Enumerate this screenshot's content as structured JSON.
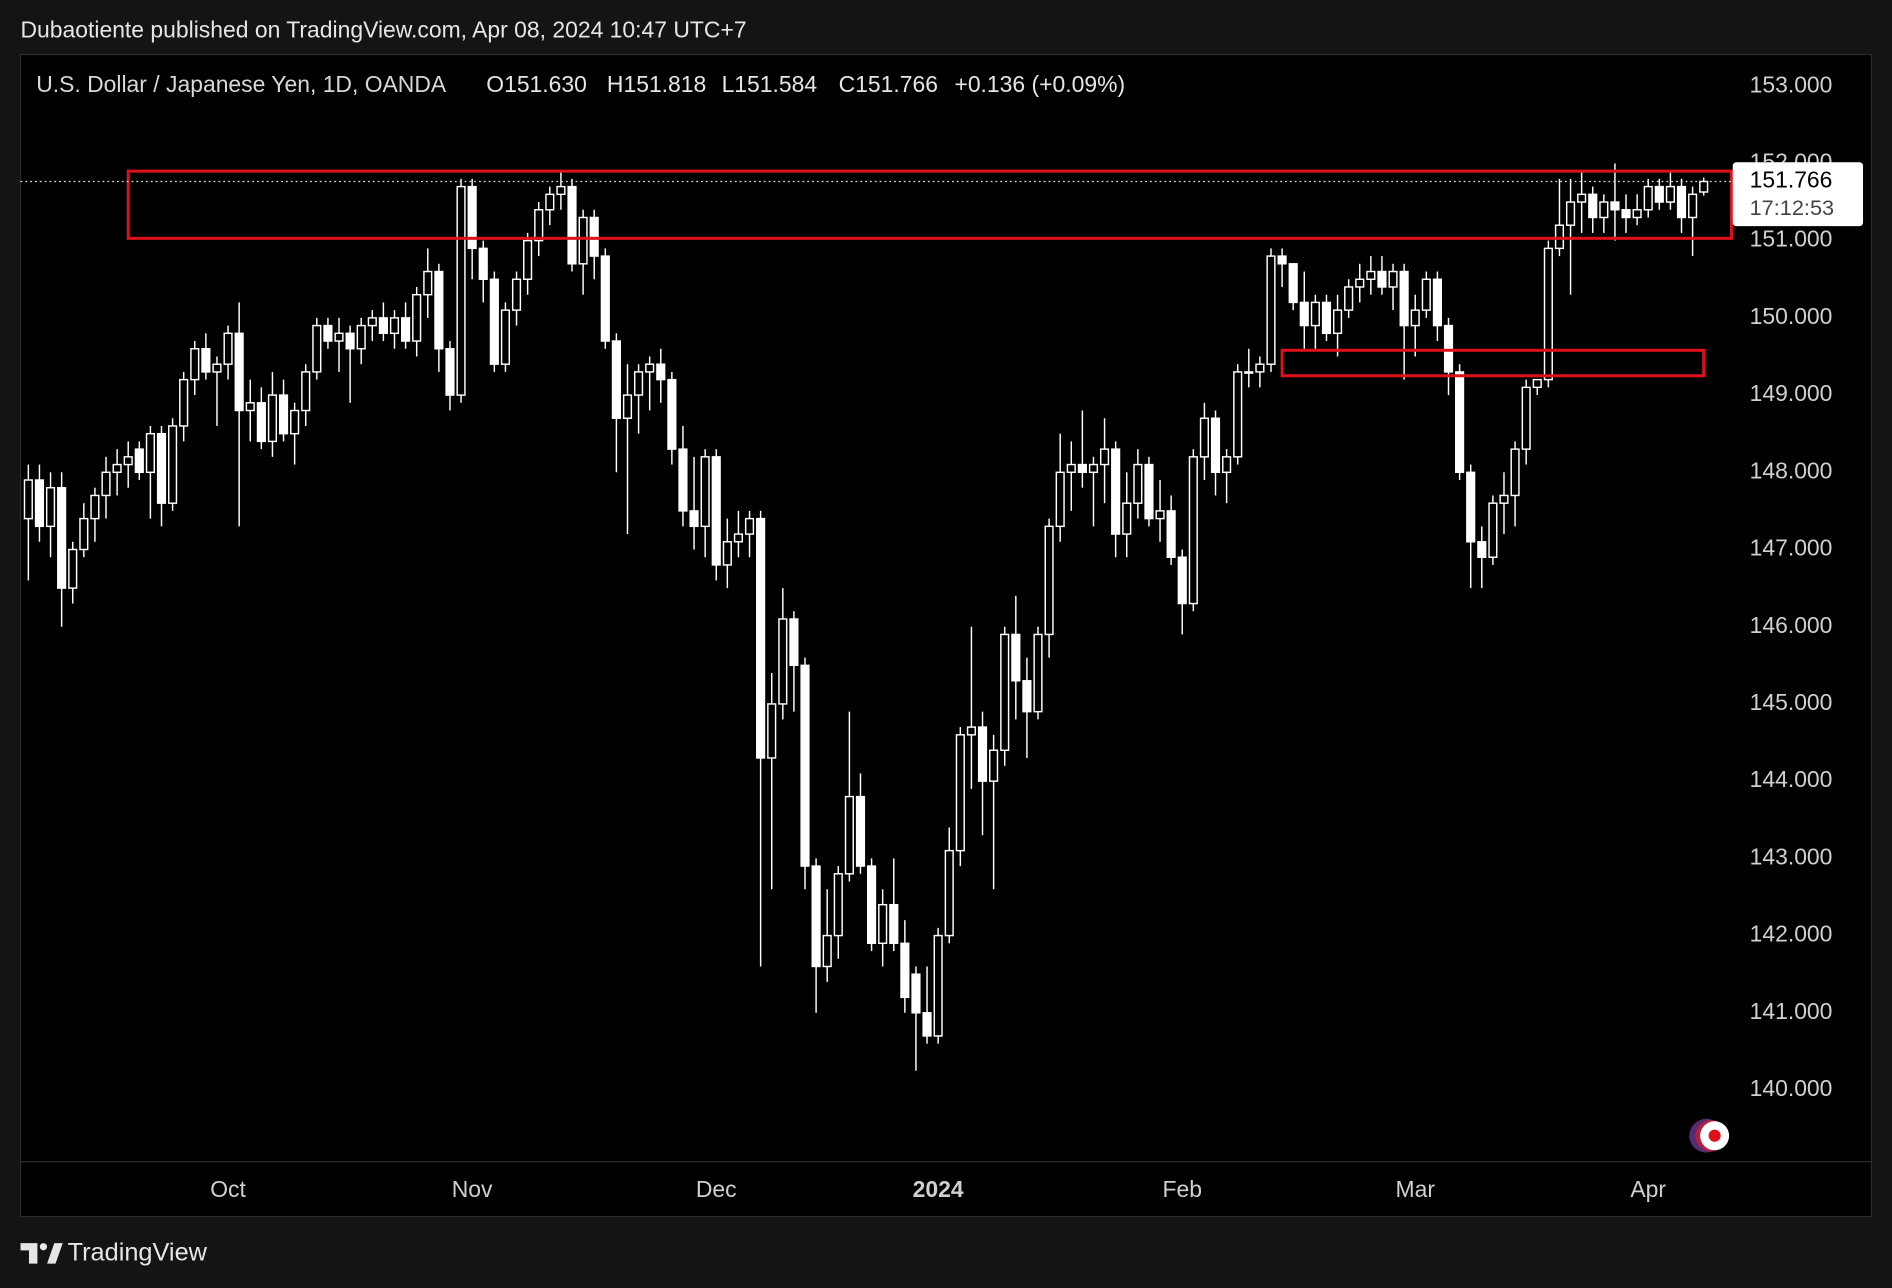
{
  "header": "Dubaotiente published on TradingView.com, Apr 08, 2024 10:47 UTC+7",
  "brand": "TradingView",
  "chart_data": {
    "type": "candlestick",
    "title": "U.S. Dollar / Japanese Yen, 1D, OANDA",
    "ohlc_labels": [
      "O151.630",
      "H151.818",
      "L151.584",
      "C151.766"
    ],
    "change": "+0.136 (+0.09%)",
    "last_price_label": "151.766",
    "countdown": "17:12:53",
    "color": "#ffffff",
    "categories": [
      null,
      null,
      null,
      null,
      null,
      null,
      null,
      null,
      null,
      null,
      null,
      null,
      null,
      null,
      null,
      null,
      null,
      null,
      "Oct",
      null,
      null,
      null,
      null,
      null,
      null,
      null,
      null,
      null,
      null,
      null,
      null,
      null,
      null,
      null,
      null,
      null,
      null,
      null,
      null,
      null,
      "Nov",
      null,
      null,
      null,
      null,
      null,
      null,
      null,
      null,
      null,
      null,
      null,
      null,
      null,
      null,
      null,
      null,
      null,
      null,
      null,
      null,
      null,
      "Dec",
      null,
      null,
      null,
      null,
      null,
      null,
      null,
      null,
      null,
      null,
      null,
      null,
      null,
      null,
      null,
      null,
      null,
      null,
      null,
      "2024",
      null,
      null,
      null,
      null,
      null,
      null,
      null,
      null,
      null,
      null,
      null,
      null,
      null,
      null,
      null,
      null,
      null,
      null,
      null,
      null,
      null,
      "Feb",
      null,
      null,
      null,
      null,
      null,
      null,
      null,
      null,
      null,
      null,
      null,
      null,
      null,
      null,
      null,
      null,
      null,
      null,
      null,
      null,
      "Mar",
      null,
      null,
      null,
      null,
      null,
      null,
      null,
      null,
      null,
      null,
      null,
      null,
      null,
      null,
      null,
      null,
      null,
      null,
      null,
      null,
      "Apr",
      null,
      null,
      null,
      null,
      null
    ],
    "open": [
      147.4,
      147.9,
      147.3,
      147.8,
      146.5,
      147.0,
      147.4,
      147.7,
      148.0,
      148.1,
      148.3,
      148.0,
      148.5,
      147.6,
      148.6,
      149.2,
      149.6,
      149.3,
      149.4,
      149.8,
      148.8,
      148.9,
      148.4,
      149.0,
      148.5,
      148.8,
      149.3,
      149.9,
      149.7,
      149.8,
      149.6,
      149.9,
      150.0,
      149.8,
      150.0,
      149.7,
      150.3,
      150.6,
      149.6,
      149.0,
      151.7,
      150.9,
      150.5,
      149.4,
      150.1,
      150.5,
      151.0,
      151.4,
      151.6,
      151.7,
      150.7,
      151.3,
      150.8,
      149.7,
      148.7,
      149.0,
      149.3,
      149.4,
      149.2,
      148.3,
      147.5,
      147.3,
      148.2,
      146.8,
      147.1,
      147.2,
      147.4,
      144.3,
      145.0,
      146.1,
      145.5,
      142.9,
      141.6,
      142.0,
      142.8,
      143.8,
      142.9,
      141.9,
      142.4,
      141.9,
      141.5,
      141.0,
      140.7,
      142.0,
      143.1,
      144.6,
      144.7,
      144.0,
      144.4,
      145.9,
      145.3,
      144.9,
      145.9,
      147.3,
      148.0,
      148.1,
      148.0,
      148.1,
      148.3,
      147.2,
      147.6,
      148.1,
      147.4,
      147.5,
      146.9,
      146.3,
      148.2,
      148.7,
      148.0,
      148.2,
      149.3,
      149.3,
      149.4,
      150.8,
      150.7,
      150.2,
      149.9,
      150.2,
      149.8,
      150.1,
      150.4,
      150.5,
      150.6,
      150.4,
      150.6,
      149.9,
      150.1,
      150.5,
      149.9,
      149.3,
      148.0,
      147.1,
      146.9,
      147.6,
      147.7,
      148.3,
      149.1,
      149.2,
      150.9,
      151.2,
      151.5,
      151.6,
      151.3,
      151.5,
      151.4,
      151.3,
      151.4,
      151.7,
      151.5,
      151.7,
      151.3,
      151.63
    ],
    "high": [
      148.1,
      148.1,
      148.0,
      148.0,
      147.1,
      147.6,
      147.8,
      148.2,
      148.3,
      148.4,
      148.4,
      148.6,
      148.6,
      148.7,
      149.3,
      149.7,
      149.8,
      149.5,
      149.9,
      150.2,
      149.2,
      149.1,
      149.3,
      149.2,
      148.9,
      149.4,
      150.0,
      150.0,
      150.0,
      149.9,
      150.0,
      150.1,
      150.2,
      150.1,
      150.2,
      150.4,
      150.9,
      150.7,
      149.7,
      151.8,
      151.8,
      151.0,
      150.6,
      150.2,
      150.6,
      151.1,
      151.5,
      151.7,
      151.9,
      151.8,
      151.4,
      151.4,
      150.9,
      149.8,
      149.4,
      149.4,
      149.5,
      149.6,
      149.3,
      148.6,
      148.2,
      148.3,
      148.3,
      147.4,
      147.5,
      147.5,
      147.5,
      145.4,
      146.5,
      146.2,
      145.6,
      143.0,
      142.6,
      142.9,
      144.9,
      144.1,
      143.0,
      142.6,
      143.0,
      142.2,
      141.6,
      141.6,
      142.1,
      143.4,
      144.7,
      146.0,
      144.9,
      144.6,
      146.0,
      146.4,
      145.6,
      146.0,
      147.4,
      148.5,
      148.4,
      148.8,
      148.2,
      148.7,
      148.4,
      148.0,
      148.3,
      148.2,
      147.9,
      147.7,
      147.0,
      148.3,
      148.9,
      148.8,
      148.3,
      149.4,
      149.6,
      149.5,
      150.9,
      150.9,
      150.7,
      150.6,
      150.3,
      150.3,
      150.3,
      150.5,
      150.7,
      150.8,
      150.8,
      150.7,
      150.7,
      150.3,
      150.6,
      150.6,
      150.0,
      149.4,
      148.1,
      147.3,
      147.7,
      148.0,
      148.4,
      149.2,
      149.2,
      151.0,
      151.8,
      151.8,
      151.9,
      151.7,
      151.6,
      152.0,
      151.6,
      151.6,
      151.8,
      151.8,
      151.9,
      151.8,
      151.7,
      151.818
    ],
    "low": [
      146.6,
      147.1,
      146.9,
      146.0,
      146.3,
      146.9,
      147.1,
      147.4,
      147.7,
      147.8,
      147.9,
      147.4,
      147.3,
      147.5,
      148.4,
      149.0,
      149.2,
      148.6,
      149.2,
      147.3,
      148.4,
      148.3,
      148.2,
      148.4,
      148.1,
      148.6,
      149.2,
      149.6,
      149.3,
      148.9,
      149.4,
      149.7,
      149.7,
      149.6,
      149.6,
      149.5,
      150.0,
      149.3,
      148.8,
      148.9,
      150.5,
      150.2,
      149.3,
      149.3,
      149.9,
      150.3,
      150.8,
      151.2,
      151.4,
      150.6,
      150.3,
      150.5,
      149.6,
      148.0,
      147.2,
      148.5,
      148.8,
      148.9,
      148.1,
      147.3,
      147.0,
      146.9,
      146.6,
      146.5,
      146.9,
      146.9,
      141.6,
      142.6,
      144.8,
      144.9,
      142.6,
      141.0,
      141.4,
      141.7,
      142.7,
      142.8,
      141.8,
      141.6,
      141.8,
      141.0,
      140.25,
      140.6,
      140.6,
      141.9,
      142.9,
      143.9,
      143.3,
      142.6,
      144.2,
      144.8,
      144.3,
      144.8,
      145.6,
      147.1,
      147.5,
      147.8,
      147.3,
      147.6,
      146.9,
      146.9,
      147.4,
      147.3,
      147.1,
      146.8,
      145.9,
      146.2,
      147.9,
      147.7,
      147.6,
      148.1,
      149.1,
      149.1,
      149.3,
      150.4,
      150.1,
      149.6,
      149.6,
      149.7,
      149.5,
      150.0,
      150.2,
      150.3,
      150.3,
      150.1,
      149.2,
      149.5,
      150.0,
      149.7,
      149.0,
      147.9,
      146.5,
      146.5,
      146.8,
      147.2,
      147.3,
      148.1,
      149.0,
      149.1,
      150.8,
      150.3,
      151.1,
      151.1,
      151.1,
      151.0,
      151.1,
      151.2,
      151.3,
      151.4,
      151.4,
      151.1,
      150.8,
      151.584
    ],
    "close": [
      147.9,
      147.3,
      147.8,
      146.5,
      147.0,
      147.4,
      147.7,
      148.0,
      148.1,
      148.2,
      148.0,
      148.5,
      147.6,
      148.6,
      149.2,
      149.6,
      149.3,
      149.4,
      149.8,
      148.8,
      148.9,
      148.4,
      149.0,
      148.5,
      148.8,
      149.3,
      149.9,
      149.7,
      149.8,
      149.6,
      149.9,
      150.0,
      149.8,
      150.0,
      149.7,
      150.3,
      150.6,
      149.6,
      149.0,
      151.7,
      150.9,
      150.5,
      149.4,
      150.1,
      150.5,
      151.0,
      151.4,
      151.6,
      151.7,
      150.7,
      151.3,
      150.8,
      149.7,
      148.7,
      149.0,
      149.3,
      149.4,
      149.2,
      148.3,
      147.5,
      147.3,
      148.2,
      146.8,
      147.1,
      147.2,
      147.4,
      144.3,
      145.0,
      146.1,
      145.5,
      142.9,
      141.6,
      142.0,
      142.8,
      143.8,
      142.9,
      141.9,
      142.4,
      141.9,
      141.2,
      141.0,
      140.7,
      142.0,
      143.1,
      144.6,
      144.7,
      144.0,
      144.4,
      145.9,
      145.3,
      144.9,
      145.9,
      147.3,
      148.0,
      148.1,
      148.0,
      148.1,
      148.3,
      147.2,
      147.6,
      148.1,
      147.4,
      147.5,
      146.9,
      146.3,
      148.2,
      148.7,
      148.0,
      148.2,
      149.3,
      149.3,
      149.4,
      150.8,
      150.7,
      150.2,
      149.9,
      150.2,
      149.8,
      150.1,
      150.4,
      150.5,
      150.6,
      150.4,
      150.6,
      149.9,
      150.1,
      150.5,
      149.9,
      149.3,
      148.0,
      147.1,
      146.9,
      147.6,
      147.7,
      148.3,
      149.1,
      149.2,
      150.9,
      151.2,
      151.5,
      151.6,
      151.3,
      151.5,
      151.4,
      151.3,
      151.4,
      151.7,
      151.5,
      151.7,
      151.3,
      151.6,
      151.766
    ],
    "zones": [
      {
        "ylim": [
          151.03,
          151.9
        ],
        "xlim": [
          9,
          153.5
        ],
        "color": "#e0101a"
      },
      {
        "ylim": [
          149.25,
          149.58
        ],
        "xlim": [
          113,
          151
        ],
        "color": "#e0101a"
      }
    ],
    "ylim": [
      139.08,
      153.41
    ],
    "yticks": [
      {
        "value": 140,
        "label": "140.000"
      },
      {
        "value": 141,
        "label": "141.000"
      },
      {
        "value": 142,
        "label": "142.000"
      },
      {
        "value": 143,
        "label": "143.000"
      },
      {
        "value": 144,
        "label": "144.000"
      },
      {
        "value": 145,
        "label": "145.000"
      },
      {
        "value": 146,
        "label": "146.000"
      },
      {
        "value": 147,
        "label": "147.000"
      },
      {
        "value": 148,
        "label": "148.000"
      },
      {
        "value": 149,
        "label": "149.000"
      },
      {
        "value": 150,
        "label": "150.000"
      },
      {
        "value": 151,
        "label": "151.000"
      },
      {
        "value": 152,
        "label": "152.000"
      },
      {
        "value": 153,
        "label": "153.000"
      }
    ],
    "grid": false
  }
}
